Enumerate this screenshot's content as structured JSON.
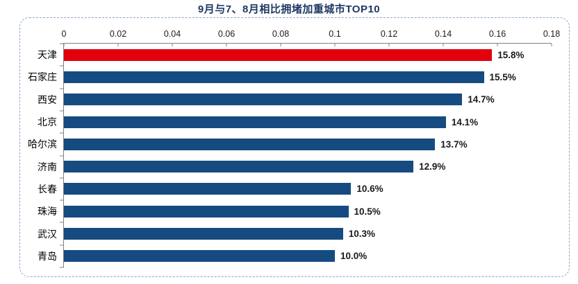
{
  "title": "9月与7、8月相比拥堵加重城市TOP10",
  "colors": {
    "bar_default": "#154b81",
    "bar_highlight": "#e2000d",
    "panel_border": "#8ba6c7",
    "axis_line": "#7f7f7f",
    "title_text": "#1f3864",
    "label_text": "#1a1a1a"
  },
  "chart_data": {
    "type": "bar",
    "orientation": "horizontal",
    "title": "9月与7、8月相比拥堵加重城市TOP10",
    "categories": [
      "天津",
      "石家庄",
      "西安",
      "北京",
      "哈尔滨",
      "济南",
      "长春",
      "珠海",
      "武汉",
      "青岛"
    ],
    "values": [
      0.158,
      0.155,
      0.147,
      0.141,
      0.137,
      0.129,
      0.106,
      0.105,
      0.103,
      0.1
    ],
    "value_labels": [
      "15.8%",
      "15.5%",
      "14.7%",
      "14.1%",
      "13.7%",
      "12.9%",
      "10.6%",
      "10.5%",
      "10.3%",
      "10.0%"
    ],
    "highlight_index": 0,
    "xlabel": "",
    "ylabel": "",
    "xlim": [
      0,
      0.18
    ],
    "x_ticks": [
      0,
      0.02,
      0.04,
      0.06,
      0.08,
      0.1,
      0.12,
      0.14,
      0.16,
      0.18
    ],
    "x_tick_labels": [
      "0",
      "0.02",
      "0.04",
      "0.06",
      "0.08",
      "0.1",
      "0.12",
      "0.14",
      "0.16",
      "0.18"
    ],
    "axis_position": "top",
    "grid": false,
    "legend": false
  }
}
